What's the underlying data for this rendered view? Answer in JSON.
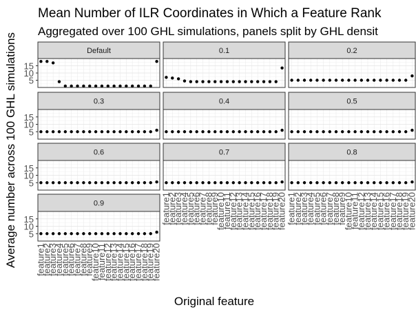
{
  "chart_data": {
    "type": "scatter",
    "title": "Mean Number of ILR Coordinates in Which a Feature Rank",
    "subtitle": "Aggregated over 100 GHL simulations, panels split by GHL densit",
    "xlabel": "Original feature",
    "ylabel": "Average number across 100 GHL simulations",
    "ylim": [
      0,
      20
    ],
    "yticks": [
      5,
      10,
      15
    ],
    "grid": true,
    "categories": [
      "feature1",
      "feature2",
      "feature3",
      "feature4",
      "feature5",
      "feature6",
      "feature7",
      "feature8",
      "feature9",
      "feature10",
      "feature11",
      "feature12",
      "feature13",
      "feature14",
      "feature15",
      "feature16",
      "feature17",
      "feature18",
      "feature19",
      "feature20"
    ],
    "panels": [
      {
        "name": "Default",
        "values": [
          18,
          18,
          17,
          4,
          1,
          1,
          1,
          1,
          1,
          1,
          1,
          1,
          1,
          1,
          1,
          1,
          1,
          1,
          1,
          18
        ]
      },
      {
        "name": "0.1",
        "values": [
          7,
          6.5,
          6,
          4.5,
          4,
          4,
          4,
          4,
          4,
          4,
          4,
          4,
          4,
          4,
          4,
          4,
          4,
          4,
          4,
          13.5
        ]
      },
      {
        "name": "0.2",
        "values": [
          5,
          5,
          5,
          5,
          5,
          5,
          5,
          5,
          5,
          5,
          5,
          5,
          5,
          5,
          5,
          5,
          5,
          5,
          5,
          8
        ]
      },
      {
        "name": "0.3",
        "values": [
          5,
          5,
          5,
          5,
          5,
          5,
          5,
          5,
          5,
          5,
          5,
          5,
          5,
          5,
          5,
          5,
          5,
          5,
          5,
          6
        ]
      },
      {
        "name": "0.4",
        "values": [
          5,
          5,
          5,
          5,
          5,
          5,
          5,
          5,
          5,
          5,
          5,
          5,
          5,
          5,
          5,
          5,
          5,
          5,
          5,
          6
        ]
      },
      {
        "name": "0.5",
        "values": [
          5,
          5,
          5,
          5,
          5,
          5,
          5,
          5,
          5,
          5,
          5,
          5,
          5,
          5,
          5,
          5,
          5,
          5,
          5,
          6
        ]
      },
      {
        "name": "0.6",
        "values": [
          5,
          5,
          5,
          5,
          5,
          5,
          5,
          5,
          5,
          5,
          5,
          5,
          5,
          5,
          5,
          5,
          5,
          5,
          5,
          5.5
        ]
      },
      {
        "name": "0.7",
        "values": [
          5,
          5,
          5,
          5,
          5,
          5,
          5,
          5,
          5,
          5,
          5,
          5,
          5,
          5,
          5,
          5,
          5,
          5,
          5,
          5.5
        ]
      },
      {
        "name": "0.8",
        "values": [
          5,
          5,
          5,
          5,
          5,
          5,
          5,
          5,
          5,
          5,
          5,
          5,
          5,
          5,
          5,
          5,
          5,
          5,
          5,
          5.5
        ]
      },
      {
        "name": "0.9",
        "values": [
          5,
          5,
          5,
          5,
          5,
          5,
          5,
          5,
          5,
          5,
          5,
          5,
          5,
          5,
          5,
          5,
          5,
          5,
          5,
          6
        ]
      }
    ]
  }
}
